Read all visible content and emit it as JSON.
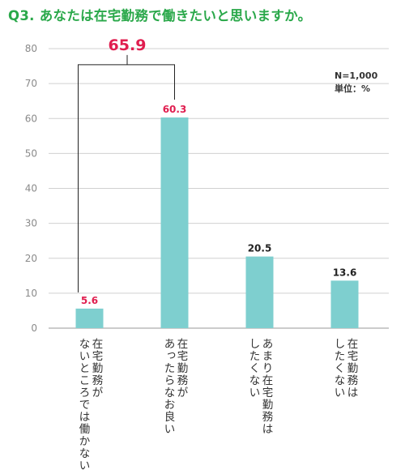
{
  "title": "Q3. あなたは在宅勤務で働きたいと思いますか。",
  "notes": {
    "n": "N=1,000",
    "unit": "単位：%"
  },
  "colors": {
    "title": "#2aa84a",
    "bar": "#7ecfcf",
    "highlight": "#e01e4f",
    "dark": "#222222"
  },
  "combined": {
    "value": "65.9",
    "of": [
      "在宅勤務が\nないところでは働かない",
      "在宅勤務が\nあったらなお良い"
    ]
  },
  "chart_data": {
    "type": "bar",
    "categories": [
      "在宅勤務が\nないところでは働かない",
      "在宅勤務が\nあったらなお良い",
      "あまり在宅勤務は\nしたくない",
      "在宅勤務は\nしたくない"
    ],
    "values": [
      5.6,
      60.3,
      20.5,
      13.6
    ],
    "value_labels": [
      "5.6",
      "60.3",
      "20.5",
      "13.6"
    ],
    "highlighted": [
      true,
      true,
      false,
      false
    ],
    "yticks": [
      "0",
      "10",
      "20",
      "30",
      "40",
      "50",
      "60",
      "70",
      "80"
    ],
    "ylim": [
      0,
      80
    ],
    "grid": true,
    "legend": "none"
  }
}
